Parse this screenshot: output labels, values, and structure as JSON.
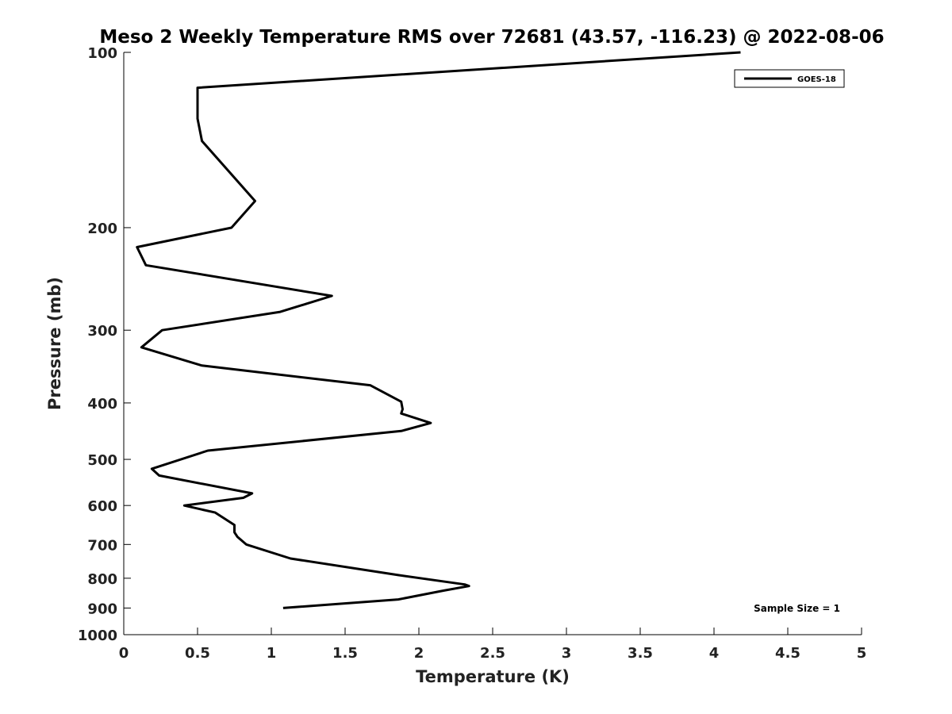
{
  "chart_data": {
    "type": "line",
    "title": "Meso 2 Weekly Temperature RMS over 72681 (43.57, -116.23) @ 2022-08-06",
    "xlabel": "Temperature (K)",
    "ylabel": "Pressure (mb)",
    "xlim": [
      0,
      5
    ],
    "ylim": [
      100,
      1000
    ],
    "yscale": "log",
    "yreversed": true,
    "x_ticks": [
      "0",
      "0.5",
      "1",
      "1.5",
      "2",
      "2.5",
      "3",
      "3.5",
      "4",
      "4.5",
      "5"
    ],
    "x_tick_values": [
      0,
      0.5,
      1,
      1.5,
      2,
      2.5,
      3,
      3.5,
      4,
      4.5,
      5
    ],
    "y_ticks": [
      "100",
      "200",
      "300",
      "400",
      "500",
      "600",
      "700",
      "800",
      "900",
      "1000"
    ],
    "y_tick_values": [
      100,
      200,
      300,
      400,
      500,
      600,
      700,
      800,
      900,
      1000
    ],
    "legend": {
      "placement": "top-right",
      "entries": [
        "GOES-18"
      ]
    },
    "annotation": "Sample Size = 1",
    "grid": false,
    "series": [
      {
        "name": "GOES-18",
        "color": "#000000",
        "x": [
          4.18,
          0.5,
          0.5,
          0.53,
          0.89,
          0.73,
          0.09,
          0.15,
          1.41,
          1.06,
          0.26,
          0.12,
          0.53,
          1.67,
          1.88,
          1.89,
          1.88,
          2.08,
          1.88,
          0.57,
          0.19,
          0.24,
          0.87,
          0.81,
          0.41,
          0.62,
          0.75,
          0.75,
          0.77,
          0.83,
          1.13,
          1.86,
          2.31,
          2.34,
          2.17,
          1.86,
          1.08
        ],
        "y": [
          100,
          115,
          130,
          142,
          180,
          200,
          216,
          232,
          262,
          279,
          300,
          321,
          345,
          373,
          398,
          410,
          417,
          433,
          447,
          483,
          519,
          533,
          572,
          582,
          600,
          617,
          648,
          667,
          679,
          700,
          740,
          790,
          820,
          825,
          840,
          870,
          900
        ]
      }
    ]
  }
}
